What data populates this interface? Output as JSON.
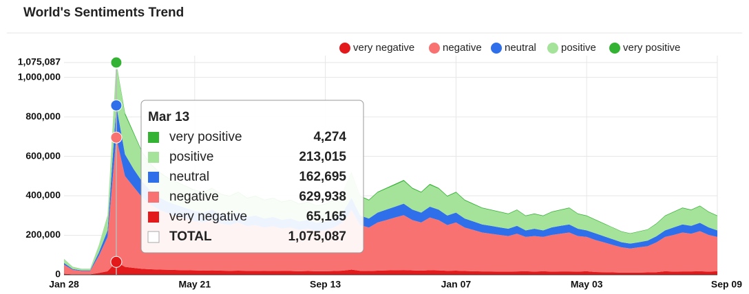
{
  "chart_data": {
    "type": "area",
    "title": "World's Sentiments Trend",
    "stacked": true,
    "categories": [
      "Jan 28",
      null,
      null,
      null,
      null,
      null,
      null,
      null,
      null,
      null,
      null,
      null,
      null,
      null,
      null,
      "May 21",
      null,
      null,
      null,
      null,
      null,
      null,
      null,
      null,
      null,
      null,
      null,
      null,
      null,
      null,
      "Sep 13",
      null,
      null,
      null,
      null,
      null,
      null,
      null,
      null,
      null,
      null,
      null,
      null,
      null,
      null,
      "Jan 07",
      null,
      null,
      null,
      null,
      null,
      null,
      null,
      null,
      null,
      null,
      null,
      null,
      null,
      null,
      "May 03",
      null,
      null,
      null,
      null,
      null,
      null,
      null,
      null,
      null,
      null,
      null,
      null,
      null,
      null,
      "Sep 09"
    ],
    "series": [
      {
        "name": "very negative",
        "color": "#e31a1c",
        "values": [
          5000,
          2000,
          2000,
          2000,
          9000,
          18000,
          65165,
          40000,
          35000,
          30000,
          28000,
          26000,
          25000,
          24000,
          23000,
          22000,
          21000,
          22000,
          21000,
          20000,
          21000,
          20000,
          20000,
          19000,
          20000,
          19000,
          19000,
          18000,
          19000,
          18000,
          18000,
          19000,
          21000,
          26000,
          20000,
          19000,
          21000,
          22000,
          23000,
          24000,
          22000,
          21000,
          23000,
          22000,
          20000,
          21000,
          19000,
          18000,
          17000,
          17000,
          16000,
          16000,
          17000,
          18000,
          16000,
          18000,
          16000,
          17000,
          17000,
          16000,
          18000,
          14000,
          13000,
          12000,
          11000,
          11000,
          11000,
          12000,
          13000,
          18000,
          16000,
          17000,
          17000,
          18000,
          16000,
          18000
        ]
      },
      {
        "name": "negative",
        "color": "#f87272",
        "values": [
          46000,
          23000,
          17000,
          17000,
          87000,
          174000,
          629938,
          460000,
          410000,
          360000,
          325000,
          302000,
          285000,
          273000,
          261000,
          250000,
          244000,
          255000,
          238000,
          232000,
          244000,
          226000,
          232000,
          220000,
          226000,
          215000,
          220000,
          209000,
          215000,
          203000,
          209000,
          220000,
          244000,
          302000,
          232000,
          220000,
          244000,
          255000,
          267000,
          278000,
          255000,
          244000,
          267000,
          255000,
          232000,
          244000,
          220000,
          209000,
          197000,
          191000,
          186000,
          180000,
          191000,
          174000,
          180000,
          174000,
          186000,
          191000,
          197000,
          180000,
          174000,
          162000,
          151000,
          139000,
          128000,
          122000,
          128000,
          133000,
          151000,
          174000,
          186000,
          197000,
          191000,
          203000,
          186000,
          174000
        ]
      },
      {
        "name": "neutral",
        "color": "#2f6fe9",
        "values": [
          9000,
          4000,
          3000,
          3000,
          17000,
          33000,
          162695,
          110000,
          90000,
          80000,
          70000,
          62000,
          58000,
          56000,
          54000,
          51000,
          50000,
          53000,
          49000,
          48000,
          50000,
          47000,
          48000,
          46000,
          47000,
          44000,
          46000,
          43000,
          44000,
          42000,
          43000,
          46000,
          50000,
          62000,
          48000,
          46000,
          50000,
          53000,
          55000,
          58000,
          53000,
          50000,
          55000,
          53000,
          48000,
          50000,
          46000,
          43000,
          41000,
          40000,
          38000,
          37000,
          40000,
          33000,
          37000,
          33000,
          38000,
          40000,
          41000,
          37000,
          33000,
          34000,
          31000,
          29000,
          26000,
          25000,
          26000,
          28000,
          31000,
          33000,
          38000,
          41000,
          40000,
          42000,
          38000,
          33000
        ]
      },
      {
        "name": "positive",
        "color": "#a5e39b",
        "values": [
          19000,
          10000,
          7000,
          7000,
          36000,
          72000,
          213015,
          200000,
          178000,
          145000,
          132000,
          125000,
          118000,
          113000,
          108000,
          103000,
          101000,
          106000,
          98000,
          96000,
          101000,
          93000,
          96000,
          91000,
          93000,
          88000,
          91000,
          86000,
          88000,
          84000,
          86000,
          91000,
          101000,
          125000,
          96000,
          91000,
          101000,
          106000,
          110000,
          115000,
          106000,
          101000,
          110000,
          106000,
          96000,
          101000,
          91000,
          86000,
          82000,
          79000,
          77000,
          74000,
          79000,
          72000,
          74000,
          72000,
          77000,
          79000,
          82000,
          74000,
          72000,
          67000,
          62000,
          58000,
          53000,
          50000,
          53000,
          55000,
          62000,
          72000,
          77000,
          82000,
          79000,
          84000,
          77000,
          72000
        ]
      },
      {
        "name": "very positive",
        "color": "#33b233",
        "values": [
          1000,
          1000,
          1000,
          1000,
          1000,
          3000,
          4274,
          10000,
          7000,
          5000,
          5000,
          5000,
          4000,
          4000,
          4000,
          4000,
          4000,
          4000,
          4000,
          4000,
          4000,
          4000,
          4000,
          4000,
          4000,
          4000,
          4000,
          4000,
          4000,
          3000,
          4000,
          4000,
          4000,
          5000,
          4000,
          4000,
          4000,
          4000,
          5000,
          5000,
          4000,
          4000,
          5000,
          4000,
          4000,
          4000,
          4000,
          4000,
          3000,
          3000,
          3000,
          3000,
          3000,
          3000,
          3000,
          3000,
          3000,
          3000,
          3000,
          3000,
          3000,
          3000,
          3000,
          2000,
          2000,
          2000,
          2000,
          2000,
          3000,
          3000,
          3000,
          3000,
          3000,
          3000,
          3000,
          3000
        ]
      }
    ],
    "ylim": [
      0,
      1075087
    ],
    "yticks": [
      0,
      {
        "value": 200000,
        "label": "200,000"
      },
      {
        "value": 400000,
        "label": "400,000"
      },
      {
        "value": 600000,
        "label": "600,000"
      },
      {
        "value": 800000,
        "label": "800,000"
      },
      {
        "value": 1000000,
        "label": "1,000,000"
      },
      {
        "value": 1075087,
        "label": "1,075,087"
      }
    ],
    "grid": true,
    "legend": "top-right",
    "tooltip": {
      "title": "Mar 13",
      "value_labels": [
        "65,165",
        "629,938",
        "162,695",
        "213,015",
        "4,274"
      ],
      "total_label": "TOTAL",
      "total_value_label": "1,075,087"
    }
  }
}
